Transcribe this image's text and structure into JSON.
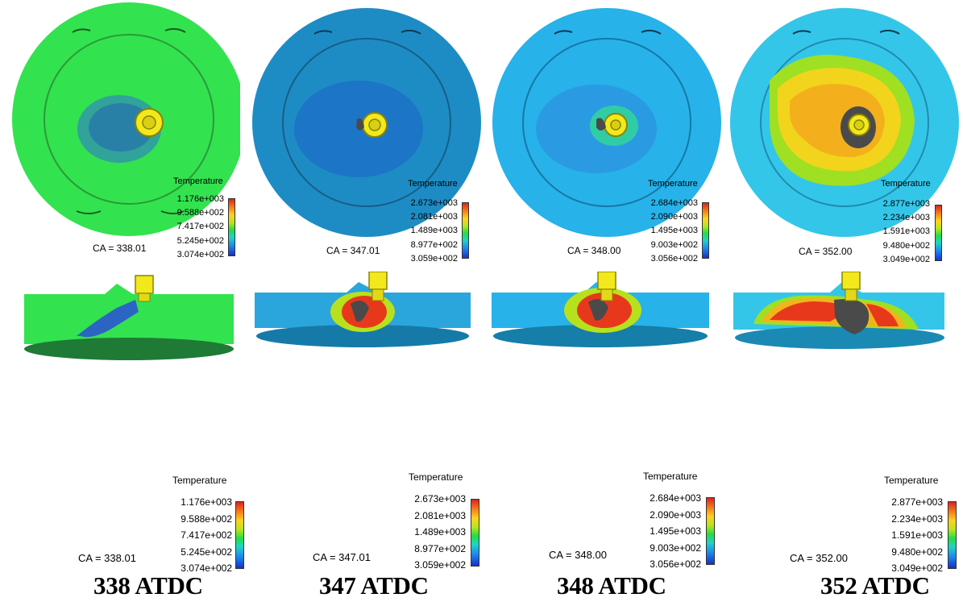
{
  "panels": [
    {
      "legend_title": "Temperature",
      "values": [
        "1.176e+003",
        "9.588e+002",
        "7.417e+002",
        "5.245e+002",
        "3.074e+002"
      ],
      "ca_label": "CA = 338.01",
      "atdc_label": "338 ATDC"
    },
    {
      "legend_title": "Temperature",
      "values": [
        "2.673e+003",
        "2.081e+003",
        "1.489e+003",
        "8.977e+002",
        "3.059e+002"
      ],
      "ca_label": "CA = 347.01",
      "atdc_label": "347 ATDC"
    },
    {
      "legend_title": "Temperature",
      "values": [
        "2.684e+003",
        "2.090e+003",
        "1.495e+003",
        "9.003e+002",
        "3.056e+002"
      ],
      "ca_label": "CA = 348.00",
      "atdc_label": "348 ATDC"
    },
    {
      "legend_title": "Temperature",
      "values": [
        "2.877e+003",
        "2.234e+003",
        "1.591e+003",
        "9.480e+002",
        "3.049e+002"
      ],
      "ca_label": "CA = 352.00",
      "atdc_label": "352 ATDC"
    }
  ],
  "colors": {
    "p1_disc": "#33e24f",
    "p2_disc": "#1e8cc4",
    "p3_disc": "#27b2ea",
    "p4_disc": "#34c6e8",
    "injector": "#f2e81c",
    "spray_dark": "#4a4a4a",
    "hot": "#e8381c"
  }
}
